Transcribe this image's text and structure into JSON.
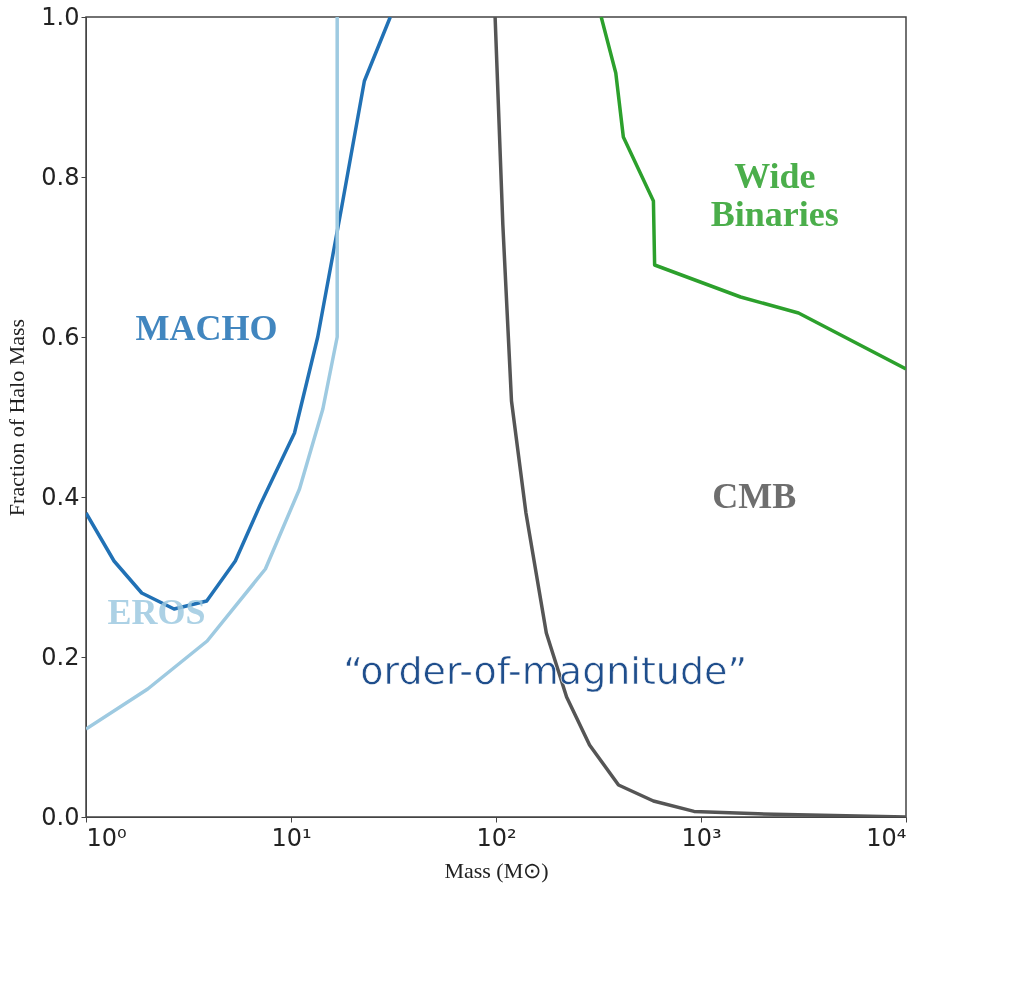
{
  "chart_data": {
    "type": "line",
    "xlabel": "Mass (M⊙)",
    "ylabel": "Fraction of Halo Mass",
    "log": "x",
    "grid": false,
    "xlim": [
      1,
      10000
    ],
    "ylim": [
      0,
      1
    ],
    "xticks": [
      {
        "value": 1,
        "label": "10⁰"
      },
      {
        "value": 10,
        "label": "10¹"
      },
      {
        "value": 100,
        "label": "10²"
      },
      {
        "value": 1000,
        "label": "10³"
      },
      {
        "value": 10000,
        "label": "10⁴"
      }
    ],
    "yticks": [
      {
        "value": 0,
        "label": "0.0"
      },
      0.2,
      0.4,
      0.6,
      0.8,
      {
        "value": 1,
        "label": "1.0"
      }
    ],
    "series": [
      {
        "color": "#2171b5",
        "x": [
          1,
          1.37,
          1.87,
          2.69,
          3.88,
          5.35,
          7.07,
          10.4,
          13.5,
          17.6,
          22.8,
          30.5
        ],
        "values": [
          0.38,
          0.32,
          0.28,
          0.26,
          0.27,
          0.32,
          0.39,
          0.48,
          0.6,
          0.76,
          0.92,
          1.0
        ]
      },
      {
        "color": "#9ecae1",
        "x": [
          1,
          2.0,
          3.9,
          7.5,
          11,
          14.3,
          16.8,
          16.8
        ],
        "values": [
          0.11,
          0.16,
          0.22,
          0.31,
          0.41,
          0.51,
          0.6,
          1.0
        ]
      },
      {
        "color": "#555555",
        "x": [
          99,
          108,
          119,
          140,
          176,
          221,
          286,
          396,
          586,
          925,
          1900,
          10000
        ],
        "values": [
          1.0,
          0.74,
          0.52,
          0.38,
          0.23,
          0.15,
          0.09,
          0.04,
          0.02,
          0.007,
          0.004,
          0.0
        ]
      },
      {
        "color": "#2ca02c",
        "x": [
          326,
          384,
          418,
          586,
          594,
          1560,
          2990,
          10000
        ],
        "values": [
          1.0,
          0.93,
          0.85,
          0.77,
          0.69,
          0.65,
          0.63,
          0.56
        ]
      }
    ],
    "annotations": [
      "MACHO",
      "EROS",
      "CMB",
      "Wide Binaries",
      "“order-of-magnitude”"
    ]
  }
}
